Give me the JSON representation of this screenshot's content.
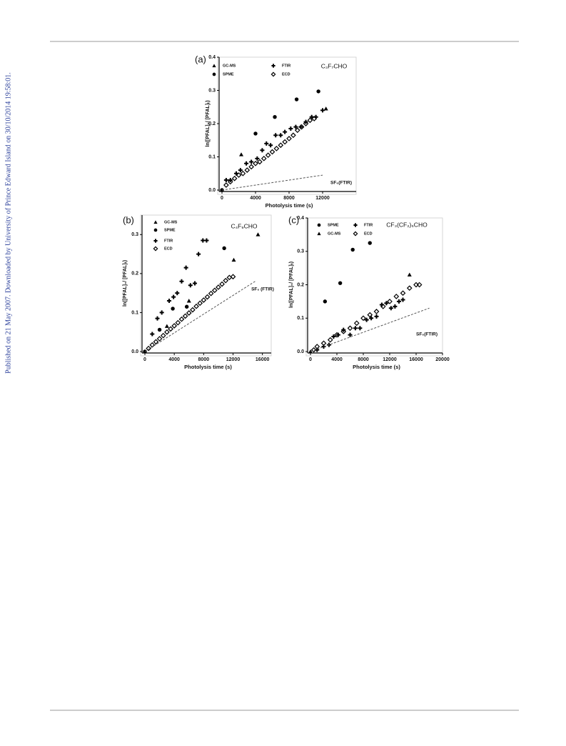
{
  "side_note": "Published on 21 May 2007. Downloaded by University of Prince Edward Island on 30/10/2014 19:58:01.",
  "chart_data": [
    {
      "type": "scatter",
      "panel_label": "(a)",
      "title": "C₃F₇CHO",
      "xlabel": "Photolysis time (s)",
      "ylabel": "ln([PFAL]₀/ [PFAL]ₜ)",
      "xlim": [
        0,
        16000
      ],
      "ylim": [
        0,
        0.4
      ],
      "xticks": [
        0,
        4000,
        8000,
        12000
      ],
      "yticks": [
        {
          "value": 0,
          "label": "0.0"
        },
        0.1,
        0.2,
        0.3,
        0.4
      ],
      "series": [
        {
          "name": "GC-MS",
          "color": "#000000",
          "marker": "triangle",
          "x": [
            0,
            2300,
            12400
          ],
          "values": [
            0,
            0.107,
            0.245
          ]
        },
        {
          "name": "SPME",
          "color": "#000000",
          "marker": "circle",
          "x": [
            0,
            4000,
            6300,
            8900,
            11500
          ],
          "values": [
            0,
            0.17,
            0.22,
            0.273,
            0.297
          ]
        },
        {
          "name": "FTIR",
          "color": "#000000",
          "marker": "plus",
          "x": [
            500,
            1000,
            1700,
            2200,
            2900,
            3500,
            4200,
            4800,
            5300,
            5800,
            6400,
            7000,
            7500,
            8200,
            8800,
            9400,
            10000,
            10700,
            11200,
            12000
          ],
          "values": [
            0.03,
            0.03,
            0.05,
            0.06,
            0.08,
            0.085,
            0.095,
            0.12,
            0.14,
            0.135,
            0.165,
            0.165,
            0.175,
            0.185,
            0.19,
            0.19,
            0.205,
            0.22,
            0.22,
            0.24
          ]
        },
        {
          "name": "ECD",
          "color": "#000000",
          "marker": "diamond",
          "x": [
            500,
            1000,
            1500,
            2000,
            2500,
            3000,
            3500,
            4000,
            4500,
            5000,
            5500,
            6000,
            6500,
            7000,
            7500,
            8000,
            8500,
            9000,
            9500,
            10000,
            10500,
            11000
          ],
          "values": [
            0.015,
            0.025,
            0.035,
            0.045,
            0.05,
            0.06,
            0.07,
            0.08,
            0.085,
            0.095,
            0.105,
            0.115,
            0.125,
            0.135,
            0.145,
            0.155,
            0.165,
            0.18,
            0.19,
            0.2,
            0.21,
            0.215
          ]
        },
        {
          "name": "SF₆(FTIR)",
          "color": "#555555",
          "line": "dashed",
          "x": [
            0,
            12000
          ],
          "values": [
            0,
            0.045
          ]
        }
      ]
    },
    {
      "type": "scatter",
      "panel_label": "(b)",
      "title": "C₄F₉CHO",
      "xlabel": "Photolysis time (s)",
      "ylabel": "ln([PFAL]₀/ [PFAL]ₜ)",
      "xlim": [
        0,
        17200
      ],
      "ylim": [
        0,
        0.35
      ],
      "xticks": [
        0,
        4000,
        8000,
        12000,
        16000
      ],
      "yticks": [
        {
          "value": 0,
          "label": "0.0"
        },
        0.1,
        0.2,
        0.3
      ],
      "series": [
        {
          "name": "GC-MS",
          "color": "#000000",
          "marker": "triangle",
          "x": [
            0,
            3000,
            6000,
            12100,
            15400
          ],
          "values": [
            0,
            0.065,
            0.13,
            0.235,
            0.3
          ]
        },
        {
          "name": "SPME",
          "color": "#000000",
          "marker": "circle",
          "x": [
            0,
            2000,
            3800,
            5700,
            10800
          ],
          "values": [
            0,
            0.056,
            0.11,
            0.115,
            0.265
          ]
        },
        {
          "name": "FTIR",
          "color": "#000000",
          "marker": "plus",
          "x": [
            1000,
            1700,
            2300,
            3300,
            3900,
            4400,
            5000,
            5600,
            6200,
            6800,
            7300,
            7900,
            8400
          ],
          "values": [
            0.045,
            0.085,
            0.1,
            0.13,
            0.14,
            0.15,
            0.18,
            0.215,
            0.17,
            0.175,
            0.25,
            0.285,
            0.285
          ]
        },
        {
          "name": "ECD",
          "color": "#000000",
          "marker": "diamond",
          "x": [
            500,
            1000,
            1500,
            2000,
            2500,
            3000,
            3500,
            4000,
            4500,
            5000,
            5500,
            6000,
            6500,
            7000,
            7500,
            8000,
            8500,
            9000,
            9500,
            10000,
            10500,
            11000,
            11500,
            12000
          ],
          "values": [
            0.008,
            0.017,
            0.025,
            0.033,
            0.041,
            0.05,
            0.058,
            0.066,
            0.074,
            0.083,
            0.091,
            0.099,
            0.107,
            0.116,
            0.124,
            0.132,
            0.14,
            0.149,
            0.157,
            0.165,
            0.173,
            0.182,
            0.19,
            0.192
          ]
        },
        {
          "name": "SF₆ (FTIR)",
          "color": "#555555",
          "line": "dashed",
          "x": [
            0,
            15000
          ],
          "values": [
            0,
            0.18
          ]
        }
      ]
    },
    {
      "type": "scatter",
      "panel_label": "(c)",
      "title": "CF₃(CF₂)₅CHO",
      "xlabel": "Photolysis time (s)",
      "ylabel": "ln([PFAL]₀/ [PFAL]ₜ)",
      "xlim": [
        0,
        20000
      ],
      "ylim": [
        0,
        0.4
      ],
      "xticks": [
        0,
        4000,
        8000,
        12000,
        16000,
        20000
      ],
      "yticks": [
        {
          "value": 0,
          "label": "0.0"
        },
        0.1,
        0.2,
        0.3,
        0.4
      ],
      "series": [
        {
          "name": "SPME",
          "color": "#000000",
          "marker": "circle",
          "x": [
            2200,
            4500,
            6400,
            9000
          ],
          "values": [
            0.15,
            0.205,
            0.305,
            0.325
          ]
        },
        {
          "name": "GC-MS",
          "color": "#000000",
          "marker": "triangle",
          "x": [
            0,
            15000
          ],
          "values": [
            0,
            0.23
          ]
        },
        {
          "name": "FTIR",
          "color": "#000000",
          "marker": "plus",
          "x": [
            1000,
            2000,
            2800,
            3500,
            4200,
            5000,
            6000,
            6800,
            7500,
            8500,
            9200,
            10000,
            10800,
            11500,
            12200,
            12800,
            13400,
            14000
          ],
          "values": [
            0.005,
            0.015,
            0.02,
            0.045,
            0.05,
            0.065,
            0.05,
            0.07,
            0.07,
            0.095,
            0.1,
            0.105,
            0.14,
            0.145,
            0.13,
            0.135,
            0.15,
            0.155
          ]
        },
        {
          "name": "ECD",
          "color": "#000000",
          "marker": "diamond",
          "x": [
            500,
            1000,
            2000,
            3000,
            4000,
            5000,
            6000,
            7000,
            8000,
            9000,
            10000,
            11000,
            12000,
            13000,
            14000,
            15000,
            16000,
            16500
          ],
          "values": [
            0.005,
            0.015,
            0.025,
            0.035,
            0.05,
            0.06,
            0.07,
            0.085,
            0.1,
            0.11,
            0.12,
            0.135,
            0.15,
            0.165,
            0.175,
            0.19,
            0.2,
            0.2
          ]
        },
        {
          "name": "SF₆(FTIR)",
          "color": "#555555",
          "line": "dashed",
          "x": [
            0,
            18000
          ],
          "values": [
            0,
            0.13
          ]
        }
      ]
    }
  ]
}
